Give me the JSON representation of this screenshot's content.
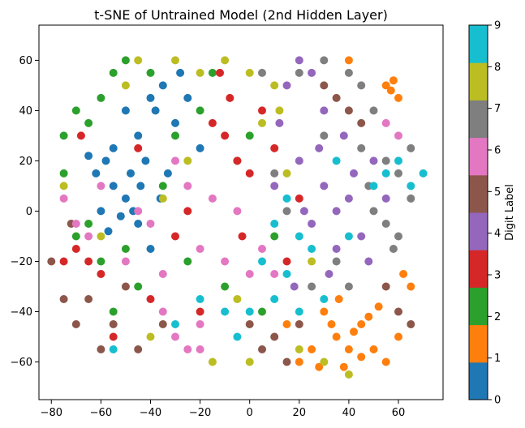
{
  "chart_data": {
    "type": "scatter",
    "title": "t-SNE of Untrained Model (2nd Hidden Layer)",
    "xlim": [
      -85,
      78
    ],
    "ylim": [
      -75,
      74
    ],
    "xticks": [
      -80,
      -60,
      -40,
      -20,
      0,
      20,
      40,
      60
    ],
    "yticks": [
      -60,
      -40,
      -20,
      0,
      20,
      40,
      60
    ],
    "grid": false,
    "colorbar": {
      "label": "Digit Label",
      "min": 0,
      "max": 9,
      "ticks": [
        0,
        1,
        2,
        3,
        4,
        5,
        6,
        7,
        8,
        9
      ],
      "colors": [
        "#1f77b4",
        "#ff7f0e",
        "#2ca02c",
        "#d62728",
        "#9467bd",
        "#8c564b",
        "#e377c2",
        "#7f7f7f",
        "#bcbd22",
        "#17becf"
      ]
    },
    "series": [
      {
        "label": 0,
        "points": [
          [
            -55,
            10
          ],
          [
            -50,
            5
          ],
          [
            -45,
            30
          ],
          [
            -52,
            -2
          ],
          [
            -48,
            15
          ],
          [
            -42,
            20
          ],
          [
            -38,
            40
          ],
          [
            -40,
            45
          ],
          [
            -58,
            20
          ],
          [
            -35,
            50
          ],
          [
            -30,
            35
          ],
          [
            -60,
            0
          ],
          [
            -45,
            -5
          ],
          [
            -55,
            25
          ],
          [
            -50,
            40
          ],
          [
            -44,
            10
          ],
          [
            -62,
            15
          ],
          [
            -47,
            0
          ],
          [
            -20,
            25
          ],
          [
            -25,
            45
          ],
          [
            -40,
            -15
          ],
          [
            -57,
            -8
          ],
          [
            -33,
            15
          ],
          [
            -28,
            55
          ],
          [
            -65,
            22
          ],
          [
            -36,
            5
          ]
        ]
      },
      {
        "label": 1,
        "points": [
          [
            35,
            -50
          ],
          [
            40,
            -55
          ],
          [
            45,
            -45
          ],
          [
            30,
            -40
          ],
          [
            50,
            -55
          ],
          [
            55,
            -60
          ],
          [
            38,
            -62
          ],
          [
            42,
            -48
          ],
          [
            48,
            -42
          ],
          [
            60,
            -50
          ],
          [
            25,
            -55
          ],
          [
            55,
            50
          ],
          [
            60,
            45
          ],
          [
            58,
            52
          ],
          [
            65,
            -30
          ],
          [
            40,
            60
          ],
          [
            20,
            -60
          ],
          [
            33,
            -45
          ],
          [
            52,
            -38
          ],
          [
            62,
            -25
          ],
          [
            45,
            -58
          ],
          [
            36,
            -35
          ],
          [
            15,
            -45
          ],
          [
            57,
            48
          ],
          [
            28,
            -62
          ]
        ]
      },
      {
        "label": 2,
        "points": [
          [
            -70,
            40
          ],
          [
            -60,
            45
          ],
          [
            -55,
            55
          ],
          [
            -50,
            60
          ],
          [
            -75,
            30
          ],
          [
            -65,
            35
          ],
          [
            -60,
            -20
          ],
          [
            -70,
            -10
          ],
          [
            -40,
            55
          ],
          [
            -30,
            30
          ],
          [
            -20,
            40
          ],
          [
            -10,
            -30
          ],
          [
            -5,
            20
          ],
          [
            -45,
            -30
          ],
          [
            -55,
            -40
          ],
          [
            -35,
            10
          ],
          [
            10,
            -10
          ],
          [
            -25,
            -20
          ],
          [
            -65,
            -5
          ],
          [
            -15,
            55
          ],
          [
            0,
            30
          ],
          [
            -75,
            15
          ],
          [
            -50,
            -15
          ],
          [
            5,
            -40
          ]
        ]
      },
      {
        "label": 3,
        "points": [
          [
            -10,
            30
          ],
          [
            -5,
            20
          ],
          [
            -15,
            35
          ],
          [
            -70,
            -15
          ],
          [
            -65,
            -20
          ],
          [
            -60,
            -25
          ],
          [
            -75,
            -20
          ],
          [
            -20,
            -40
          ],
          [
            5,
            40
          ],
          [
            -8,
            45
          ],
          [
            0,
            15
          ],
          [
            -30,
            -10
          ],
          [
            -40,
            -35
          ],
          [
            10,
            25
          ],
          [
            -55,
            -50
          ],
          [
            -25,
            0
          ],
          [
            15,
            -20
          ],
          [
            -68,
            30
          ],
          [
            -3,
            -10
          ],
          [
            -12,
            55
          ],
          [
            -45,
            25
          ],
          [
            20,
            5
          ]
        ]
      },
      {
        "label": 4,
        "points": [
          [
            20,
            20
          ],
          [
            30,
            10
          ],
          [
            35,
            0
          ],
          [
            40,
            5
          ],
          [
            25,
            -5
          ],
          [
            28,
            25
          ],
          [
            38,
            30
          ],
          [
            15,
            50
          ],
          [
            20,
            60
          ],
          [
            35,
            -15
          ],
          [
            45,
            -10
          ],
          [
            30,
            40
          ],
          [
            50,
            20
          ],
          [
            10,
            10
          ],
          [
            18,
            -30
          ],
          [
            42,
            15
          ],
          [
            25,
            55
          ],
          [
            55,
            5
          ],
          [
            32,
            -25
          ],
          [
            12,
            35
          ],
          [
            22,
            0
          ],
          [
            48,
            -20
          ]
        ]
      },
      {
        "label": 5,
        "points": [
          [
            -65,
            -35
          ],
          [
            -70,
            -45
          ],
          [
            -55,
            -45
          ],
          [
            -60,
            -55
          ],
          [
            -75,
            -35
          ],
          [
            -50,
            -30
          ],
          [
            40,
            40
          ],
          [
            35,
            45
          ],
          [
            45,
            35
          ],
          [
            30,
            50
          ],
          [
            5,
            -55
          ],
          [
            10,
            -50
          ],
          [
            15,
            -60
          ],
          [
            60,
            -40
          ],
          [
            -45,
            -55
          ],
          [
            -80,
            -20
          ],
          [
            55,
            -30
          ],
          [
            20,
            -45
          ],
          [
            -35,
            -45
          ],
          [
            65,
            -45
          ],
          [
            -72,
            -5
          ],
          [
            0,
            -45
          ]
        ]
      },
      {
        "label": 6,
        "points": [
          [
            -70,
            -5
          ],
          [
            -65,
            -10
          ],
          [
            -75,
            5
          ],
          [
            -30,
            20
          ],
          [
            -25,
            10
          ],
          [
            -20,
            -15
          ],
          [
            -35,
            -25
          ],
          [
            -30,
            -50
          ],
          [
            -25,
            -55
          ],
          [
            -20,
            -45
          ],
          [
            -40,
            -5
          ],
          [
            -10,
            -20
          ],
          [
            0,
            -25
          ],
          [
            5,
            -15
          ],
          [
            -15,
            5
          ],
          [
            -45,
            0
          ],
          [
            55,
            35
          ],
          [
            60,
            30
          ],
          [
            -50,
            -20
          ],
          [
            -35,
            -40
          ],
          [
            -20,
            -55
          ],
          [
            -5,
            0
          ],
          [
            10,
            -25
          ],
          [
            -60,
            10
          ]
        ]
      },
      {
        "label": 7,
        "points": [
          [
            20,
            55
          ],
          [
            30,
            60
          ],
          [
            40,
            55
          ],
          [
            50,
            40
          ],
          [
            55,
            20
          ],
          [
            60,
            15
          ],
          [
            65,
            5
          ],
          [
            50,
            0
          ],
          [
            60,
            -10
          ],
          [
            45,
            25
          ],
          [
            35,
            -20
          ],
          [
            25,
            -30
          ],
          [
            15,
            0
          ],
          [
            5,
            55
          ],
          [
            55,
            -5
          ],
          [
            45,
            50
          ],
          [
            65,
            25
          ],
          [
            40,
            -30
          ],
          [
            30,
            30
          ],
          [
            10,
            15
          ],
          [
            58,
            -15
          ],
          [
            48,
            10
          ]
        ]
      },
      {
        "label": 8,
        "points": [
          [
            -30,
            60
          ],
          [
            -20,
            55
          ],
          [
            -10,
            60
          ],
          [
            0,
            55
          ],
          [
            10,
            50
          ],
          [
            -25,
            20
          ],
          [
            -35,
            5
          ],
          [
            -50,
            50
          ],
          [
            -45,
            60
          ],
          [
            5,
            35
          ],
          [
            15,
            15
          ],
          [
            -5,
            -35
          ],
          [
            20,
            -55
          ],
          [
            30,
            -60
          ],
          [
            25,
            -20
          ],
          [
            -60,
            -10
          ],
          [
            -40,
            -50
          ],
          [
            -15,
            -60
          ],
          [
            -75,
            10
          ],
          [
            0,
            -60
          ],
          [
            40,
            -65
          ],
          [
            12,
            40
          ]
        ]
      },
      {
        "label": 9,
        "points": [
          [
            10,
            -5
          ],
          [
            15,
            5
          ],
          [
            20,
            -10
          ],
          [
            5,
            -20
          ],
          [
            15,
            -25
          ],
          [
            25,
            -15
          ],
          [
            0,
            -40
          ],
          [
            -10,
            -40
          ],
          [
            -20,
            -35
          ],
          [
            10,
            -35
          ],
          [
            55,
            15
          ],
          [
            60,
            20
          ],
          [
            50,
            10
          ],
          [
            65,
            10
          ],
          [
            -55,
            -55
          ],
          [
            -30,
            -45
          ],
          [
            30,
            -35
          ],
          [
            40,
            -10
          ],
          [
            20,
            -40
          ],
          [
            -5,
            -50
          ],
          [
            70,
            15
          ],
          [
            35,
            20
          ]
        ]
      }
    ]
  }
}
